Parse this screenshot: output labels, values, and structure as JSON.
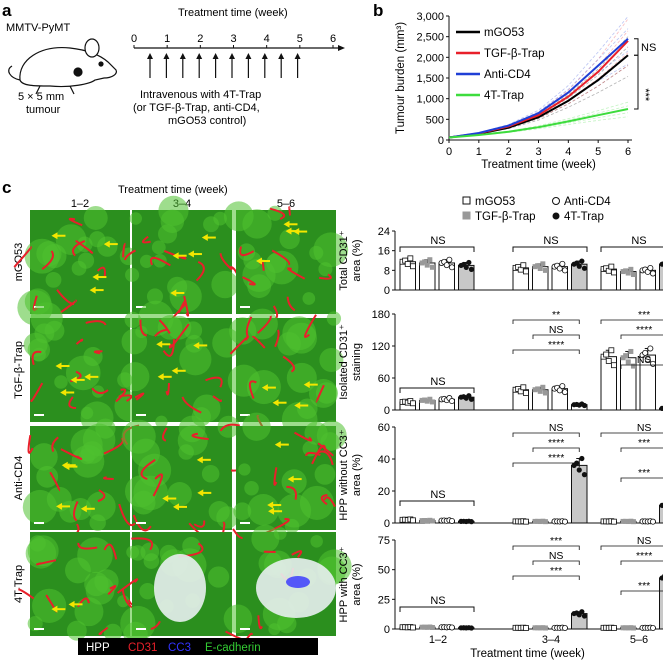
{
  "panel_labels": {
    "a": "a",
    "b": "b",
    "c": "c"
  },
  "panel_a": {
    "mouse_label": "MMTV-PyMT",
    "tumour_size": "5 × 5 mm",
    "tumour_word": "tumour",
    "timeline_title": "Treatment time (week)",
    "ticks": [
      "0",
      "1",
      "2",
      "3",
      "4",
      "5",
      "6"
    ],
    "protocol_line1": "Intravenous with 4T-Trap",
    "protocol_line2": "(or TGF-β-Trap, anti-CD4,",
    "protocol_line3": "mGO53 control)"
  },
  "panel_c_images": {
    "header": "Treatment time (week)",
    "columns": [
      "1–2",
      "3–4",
      "5–6"
    ],
    "rows": [
      "mGO53",
      "TGF-β-Trap",
      "Anti-CD4",
      "4T-Trap"
    ],
    "stain_legend": [
      {
        "label": "HPP",
        "color": "#ffffff"
      },
      {
        "label": "CD31",
        "color": "#e8202a"
      },
      {
        "label": "CC3",
        "color": "#3333ff"
      },
      {
        "label": "E-cadherin",
        "color": "#33cc33"
      }
    ]
  },
  "colors": {
    "mGO53": "#000000",
    "TGF": "#e8202a",
    "CD4": "#1f3fd6",
    "T4": "#3ddc3d",
    "bar_grey": "#c8c8c8"
  },
  "chart_data": [
    {
      "type": "line",
      "title": "",
      "xlabel": "Treatment time (week)",
      "ylabel": "Tumour burden (mm³)",
      "xlim": [
        0,
        6
      ],
      "ylim": [
        0,
        3000
      ],
      "xticks": [
        "0",
        "1",
        "2",
        "3",
        "4",
        "5",
        "6"
      ],
      "yticks": [
        "0",
        "500",
        "1,000",
        "1,500",
        "2,000",
        "2,500",
        "3,000"
      ],
      "x": [
        0,
        1,
        2,
        3,
        4,
        5,
        6
      ],
      "series": [
        {
          "name": "mGO53",
          "values": [
            60,
            150,
            300,
            550,
            950,
            1450,
            2050
          ]
        },
        {
          "name": "TGF-β-Trap",
          "values": [
            60,
            160,
            330,
            600,
            1050,
            1650,
            2400
          ]
        },
        {
          "name": "Anti-CD4",
          "values": [
            60,
            170,
            350,
            650,
            1150,
            1800,
            2450
          ]
        },
        {
          "name": "4T-Trap",
          "values": [
            60,
            120,
            200,
            310,
            450,
            600,
            750
          ]
        }
      ],
      "annotations": [
        "NS",
        "***"
      ]
    },
    {
      "type": "bar",
      "ylabel_line1": "Total CD31⁺",
      "ylabel_line2": "area (%)",
      "ylim": [
        0,
        24
      ],
      "yticks": [
        "0",
        "8",
        "16",
        "24"
      ],
      "groups": [
        "1–2",
        "3–4",
        "5–6"
      ],
      "series": [
        {
          "name": "mGO53",
          "values": [
            11.5,
            9.0,
            8.5
          ]
        },
        {
          "name": "TGF-β-Trap",
          "values": [
            11.0,
            9.5,
            7.5
          ]
        },
        {
          "name": "Anti-CD4",
          "values": [
            11.0,
            9.5,
            8.0
          ]
        },
        {
          "name": "4T-Trap",
          "values": [
            10.0,
            10.5,
            10.5
          ]
        }
      ],
      "annotations": [
        "NS",
        "NS",
        "NS"
      ]
    },
    {
      "type": "bar",
      "ylabel_line1": "Isolated CD31⁺",
      "ylabel_line2": "staining",
      "ylim": [
        0,
        180
      ],
      "yticks": [
        "0",
        "60",
        "120",
        "180"
      ],
      "groups": [
        "1–2",
        "3–4",
        "5–6"
      ],
      "series": [
        {
          "name": "mGO53",
          "values": [
            15,
            38,
            100
          ]
        },
        {
          "name": "TGF-β-Trap",
          "values": [
            18,
            38,
            98
          ]
        },
        {
          "name": "Anti-CD4",
          "values": [
            20,
            40,
            103
          ]
        },
        {
          "name": "4T-Trap",
          "values": [
            24,
            10,
            3
          ]
        }
      ],
      "annotations": [
        "NS",
        "**",
        "NS",
        "****",
        "NS",
        "***",
        "****"
      ]
    },
    {
      "type": "bar",
      "ylabel_line1": "HPP without CC3⁺",
      "ylabel_line2": "area (%)",
      "ylim": [
        0,
        60
      ],
      "yticks": [
        "0",
        "20",
        "40",
        "60"
      ],
      "groups": [
        "1–2",
        "3–4",
        "5–6"
      ],
      "series": [
        {
          "name": "mGO53",
          "values": [
            2,
            1,
            1
          ]
        },
        {
          "name": "TGF-β-Trap",
          "values": [
            1.5,
            1,
            1
          ]
        },
        {
          "name": "Anti-CD4",
          "values": [
            1.5,
            1,
            1
          ]
        },
        {
          "name": "4T-Trap",
          "values": [
            1,
            36,
            11
          ]
        }
      ],
      "annotations": [
        "NS",
        "NS",
        "****",
        "****",
        "***",
        "NS",
        "***"
      ]
    },
    {
      "type": "bar",
      "ylabel_line1": "HPP with CC3⁺",
      "ylabel_line2": "area (%)",
      "ylim": [
        0,
        75
      ],
      "yticks": [
        "0",
        "25",
        "50",
        "75"
      ],
      "groups": [
        "1–2",
        "3–4",
        "5–6"
      ],
      "xlabel": "Treatment time (week)",
      "series": [
        {
          "name": "mGO53",
          "values": [
            1.5,
            1,
            1
          ]
        },
        {
          "name": "TGF-β-Trap",
          "values": [
            1.5,
            1,
            1
          ]
        },
        {
          "name": "Anti-CD4",
          "values": [
            1.5,
            1,
            1
          ]
        },
        {
          "name": "4T-Trap",
          "values": [
            1,
            13,
            43
          ]
        }
      ],
      "annotations": [
        "NS",
        "***",
        "NS",
        "***",
        "***",
        "NS",
        "****"
      ]
    }
  ],
  "bar_legend": [
    {
      "name": "mGO53",
      "marker": "open-square"
    },
    {
      "name": "Anti-CD4",
      "marker": "open-circle"
    },
    {
      "name": "TGF-β-Trap",
      "marker": "grey-square"
    },
    {
      "name": "4T-Trap",
      "marker": "black-circle"
    }
  ]
}
